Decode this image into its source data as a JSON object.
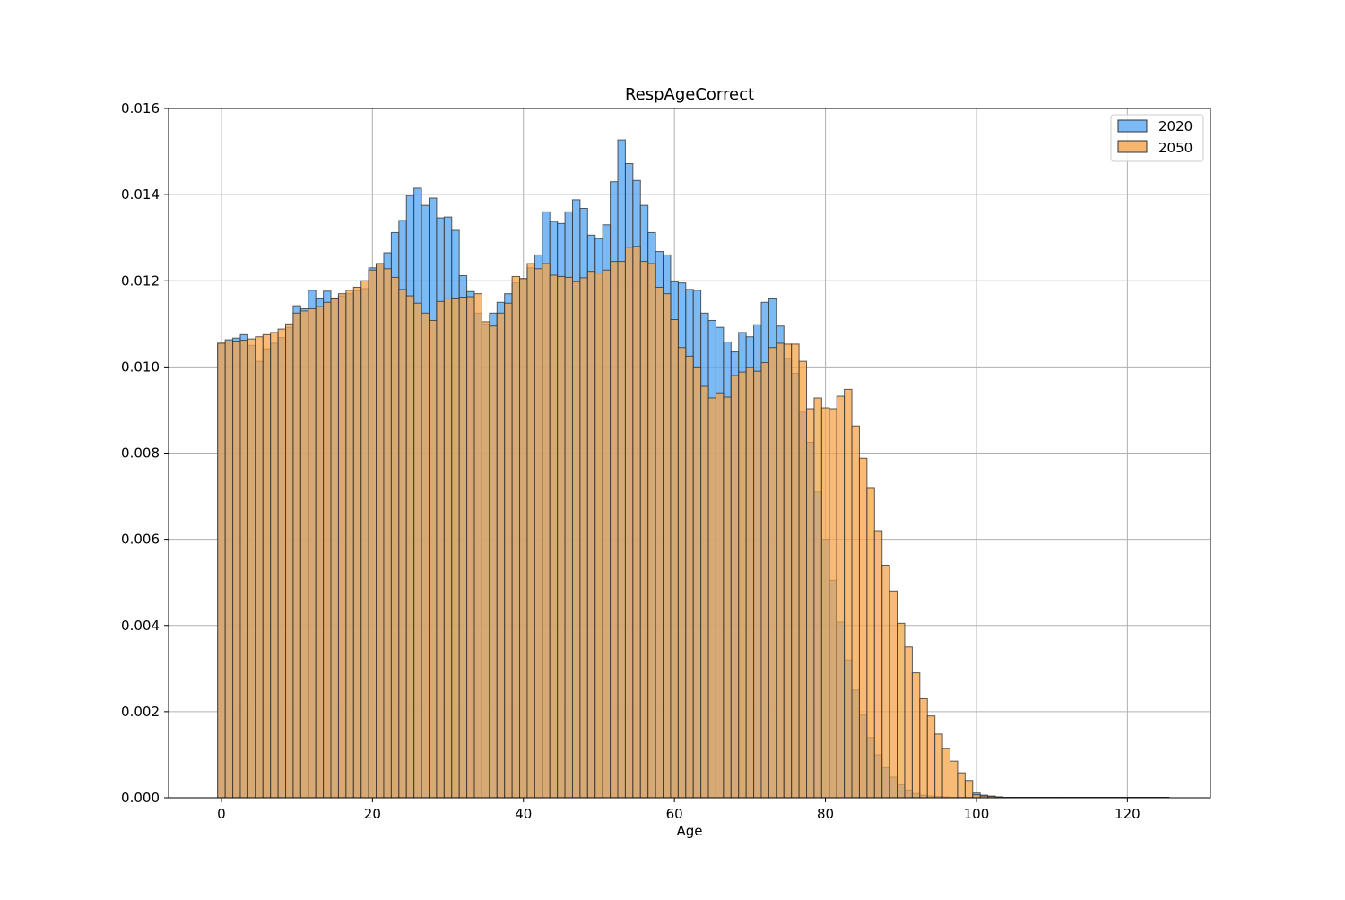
{
  "chart_data": {
    "type": "bar",
    "title": "RespAgeCorrect",
    "xlabel": "Age",
    "ylabel": "",
    "xlim": [
      -7,
      131
    ],
    "ylim": [
      0,
      0.016
    ],
    "xticks": [
      0,
      20,
      40,
      60,
      80,
      100,
      120
    ],
    "yticks": [
      0.0,
      0.002,
      0.004,
      0.006,
      0.008,
      0.01,
      0.012,
      0.014,
      0.016
    ],
    "ytick_labels": [
      "0.000",
      "0.002",
      "0.004",
      "0.006",
      "0.008",
      "0.010",
      "0.012",
      "0.014",
      "0.016"
    ],
    "grid": true,
    "legend_position": "top-right",
    "bin_start": -0.5,
    "bin_width": 1,
    "series": [
      {
        "name": "2020",
        "color": "#5aa9f2",
        "values": [
          0.01055,
          0.01063,
          0.01067,
          0.01075,
          0.0105,
          0.01013,
          0.01042,
          0.01055,
          0.01068,
          0.01092,
          0.01142,
          0.01135,
          0.01178,
          0.0116,
          0.01176,
          0.0116,
          0.01165,
          0.0117,
          0.01177,
          0.01182,
          0.0123,
          0.0124,
          0.01265,
          0.01312,
          0.0134,
          0.01398,
          0.01415,
          0.01375,
          0.01392,
          0.01346,
          0.01348,
          0.01317,
          0.01212,
          0.01175,
          0.01125,
          0.011,
          0.01125,
          0.0115,
          0.0117,
          0.01195,
          0.01205,
          0.0123,
          0.0126,
          0.0136,
          0.01338,
          0.01333,
          0.0136,
          0.01388,
          0.01368,
          0.01306,
          0.01298,
          0.0133,
          0.0143,
          0.01527,
          0.01472,
          0.01433,
          0.01375,
          0.01312,
          0.01268,
          0.0126,
          0.01198,
          0.01195,
          0.0118,
          0.01178,
          0.01125,
          0.01108,
          0.01092,
          0.01058,
          0.01035,
          0.0108,
          0.0107,
          0.01098,
          0.0115,
          0.0116,
          0.01095,
          0.0102,
          0.00985,
          0.00895,
          0.00825,
          0.0071,
          0.006,
          0.00505,
          0.00408,
          0.0032,
          0.0025,
          0.00192,
          0.0014,
          0.001,
          0.0007,
          0.00048,
          0.0003,
          0.00018,
          0.0001,
          6e-05,
          4e-05,
          3e-05,
          2e-05,
          1e-05,
          1e-05,
          1e-05,
          0.00011,
          6e-05,
          4e-05,
          2e-05,
          1e-05,
          1e-05,
          1e-05,
          1e-05,
          1e-05,
          1e-05,
          1e-05,
          1e-05,
          1e-05,
          1e-05,
          1e-05,
          1e-05,
          1e-05,
          1e-05,
          1e-05,
          1e-05,
          1e-05,
          1e-05,
          1e-05,
          1e-05,
          1e-05,
          1e-05
        ]
      },
      {
        "name": "2050",
        "color": "#f5a44a",
        "values": [
          0.01055,
          0.01058,
          0.0106,
          0.01062,
          0.01065,
          0.0107,
          0.01075,
          0.0108,
          0.01088,
          0.011,
          0.01125,
          0.0113,
          0.01135,
          0.0114,
          0.0115,
          0.0116,
          0.0117,
          0.01178,
          0.01185,
          0.012,
          0.01225,
          0.0124,
          0.01228,
          0.01208,
          0.0118,
          0.01165,
          0.01148,
          0.01125,
          0.01108,
          0.01152,
          0.01158,
          0.0116,
          0.01162,
          0.01163,
          0.0117,
          0.01105,
          0.01095,
          0.01125,
          0.01148,
          0.0121,
          0.01205,
          0.0124,
          0.01228,
          0.0124,
          0.01213,
          0.0121,
          0.01208,
          0.01198,
          0.01207,
          0.01222,
          0.01218,
          0.01225,
          0.01245,
          0.01245,
          0.01278,
          0.0128,
          0.01245,
          0.0124,
          0.01185,
          0.0117,
          0.0111,
          0.01045,
          0.01025,
          0.01,
          0.00955,
          0.00928,
          0.0094,
          0.0093,
          0.0098,
          0.00988,
          0.00999,
          0.0099,
          0.0101,
          0.01045,
          0.01055,
          0.01053,
          0.01053,
          0.01013,
          0.00903,
          0.00928,
          0.00905,
          0.00903,
          0.00932,
          0.00948,
          0.00863,
          0.00788,
          0.0072,
          0.0062,
          0.0054,
          0.0048,
          0.00405,
          0.0035,
          0.0029,
          0.0023,
          0.0019,
          0.00148,
          0.00115,
          0.00085,
          0.00058,
          0.0004,
          7e-05,
          4e-05,
          3e-05,
          2e-05,
          1e-05,
          1e-05,
          1e-05,
          1e-05,
          1e-05,
          1e-05,
          1e-05,
          1e-05,
          1e-05,
          1e-05,
          1e-05,
          1e-05,
          1e-05,
          1e-05,
          1e-05,
          1e-05,
          1e-05,
          1e-05,
          1e-05,
          1e-05,
          1e-05,
          1e-05
        ]
      }
    ]
  }
}
